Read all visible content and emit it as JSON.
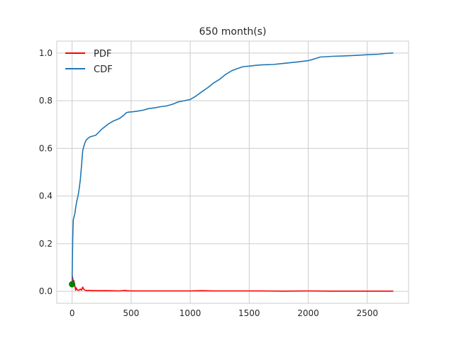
{
  "chart_data": {
    "type": "line",
    "title": "650 month(s)",
    "xlabel": "",
    "ylabel": "",
    "xlim": [
      -130,
      2850
    ],
    "ylim": [
      -0.05,
      1.05
    ],
    "x_ticks": [
      0,
      500,
      1000,
      1500,
      2000,
      2500
    ],
    "x_tick_labels": [
      "0",
      "500",
      "1000",
      "1500",
      "2000",
      "2500"
    ],
    "y_ticks": [
      0.0,
      0.2,
      0.4,
      0.6,
      0.8,
      1.0
    ],
    "y_tick_labels": [
      "0.0",
      "0.2",
      "0.4",
      "0.6",
      "0.8",
      "1.0"
    ],
    "grid": true,
    "legend_position": "top-left",
    "series": [
      {
        "name": "PDF",
        "color": "#ff0000",
        "x": [
          0,
          5,
          10,
          15,
          20,
          25,
          30,
          35,
          40,
          50,
          60,
          70,
          80,
          90,
          100,
          110,
          120,
          150,
          200,
          300,
          400,
          450,
          460,
          500,
          600,
          800,
          1000,
          1100,
          1200,
          1400,
          1600,
          1800,
          2000,
          2200,
          2400,
          2600,
          2720
        ],
        "y": [
          0.07,
          0.055,
          0.04,
          0.045,
          0.03,
          0.02,
          0.005,
          0.015,
          0.008,
          0.005,
          0.005,
          0.01,
          0.005,
          0.018,
          0.008,
          0.005,
          0.004,
          0.004,
          0.003,
          0.003,
          0.002,
          0.004,
          0.003,
          0.002,
          0.002,
          0.002,
          0.002,
          0.003,
          0.002,
          0.002,
          0.002,
          0.001,
          0.002,
          0.001,
          0.001,
          0.001,
          0.001
        ]
      },
      {
        "name": "CDF",
        "color": "#1f77b4",
        "x": [
          0,
          5,
          10,
          15,
          20,
          25,
          30,
          40,
          50,
          60,
          70,
          80,
          90,
          100,
          110,
          120,
          130,
          150,
          200,
          250,
          300,
          350,
          400,
          440,
          460,
          480,
          500,
          550,
          600,
          650,
          700,
          750,
          800,
          850,
          900,
          950,
          1000,
          1050,
          1100,
          1150,
          1200,
          1250,
          1300,
          1350,
          1400,
          1450,
          1500,
          1550,
          1600,
          1700,
          1800,
          1900,
          2000,
          2050,
          2100,
          2200,
          2300,
          2400,
          2500,
          2600,
          2650,
          2720
        ],
        "y": [
          0.03,
          0.22,
          0.3,
          0.31,
          0.32,
          0.33,
          0.35,
          0.38,
          0.4,
          0.43,
          0.47,
          0.53,
          0.59,
          0.61,
          0.625,
          0.635,
          0.64,
          0.648,
          0.655,
          0.68,
          0.7,
          0.715,
          0.725,
          0.74,
          0.75,
          0.752,
          0.753,
          0.756,
          0.76,
          0.767,
          0.77,
          0.775,
          0.778,
          0.785,
          0.795,
          0.8,
          0.805,
          0.82,
          0.838,
          0.855,
          0.875,
          0.89,
          0.91,
          0.925,
          0.935,
          0.943,
          0.945,
          0.948,
          0.95,
          0.952,
          0.957,
          0.962,
          0.968,
          0.975,
          0.983,
          0.986,
          0.988,
          0.99,
          0.993,
          0.995,
          0.998,
          1.0
        ]
      }
    ],
    "points": [
      {
        "x": 0,
        "y": 0.03,
        "color": "#008000"
      }
    ]
  }
}
